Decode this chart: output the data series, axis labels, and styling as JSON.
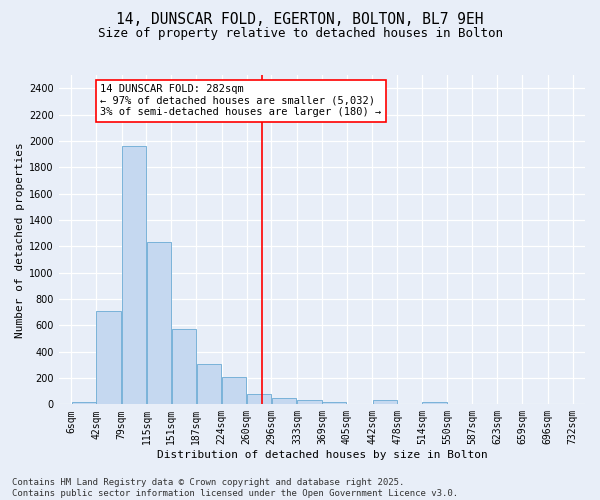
{
  "title": "14, DUNSCAR FOLD, EGERTON, BOLTON, BL7 9EH",
  "subtitle": "Size of property relative to detached houses in Bolton",
  "xlabel": "Distribution of detached houses by size in Bolton",
  "ylabel": "Number of detached properties",
  "bar_color": "#c5d8f0",
  "bar_edge_color": "#6aaad4",
  "background_color": "#e8eef8",
  "grid_color": "#ffffff",
  "bins": [
    6,
    42,
    79,
    115,
    151,
    187,
    224,
    260,
    296,
    333,
    369,
    405,
    442,
    478,
    514,
    550,
    587,
    623,
    659,
    696,
    732
  ],
  "bin_labels": [
    "6sqm",
    "42sqm",
    "79sqm",
    "115sqm",
    "151sqm",
    "187sqm",
    "224sqm",
    "260sqm",
    "296sqm",
    "333sqm",
    "369sqm",
    "405sqm",
    "442sqm",
    "478sqm",
    "514sqm",
    "550sqm",
    "587sqm",
    "623sqm",
    "659sqm",
    "696sqm",
    "732sqm"
  ],
  "values": [
    15,
    710,
    1960,
    1235,
    575,
    305,
    210,
    75,
    45,
    35,
    15,
    0,
    30,
    0,
    15,
    0,
    0,
    0,
    0,
    0
  ],
  "property_size": 282,
  "annotation_title": "14 DUNSCAR FOLD: 282sqm",
  "annotation_line1": "← 97% of detached houses are smaller (5,032)",
  "annotation_line2": "3% of semi-detached houses are larger (180) →",
  "vline_x": 282,
  "ylim": [
    0,
    2500
  ],
  "yticks": [
    0,
    200,
    400,
    600,
    800,
    1000,
    1200,
    1400,
    1600,
    1800,
    2000,
    2200,
    2400
  ],
  "footer": "Contains HM Land Registry data © Crown copyright and database right 2025.\nContains public sector information licensed under the Open Government Licence v3.0.",
  "title_fontsize": 10.5,
  "subtitle_fontsize": 9,
  "annotation_fontsize": 7.5,
  "axis_label_fontsize": 8,
  "tick_fontsize": 7,
  "ylabel_fontsize": 8,
  "footer_fontsize": 6.5
}
